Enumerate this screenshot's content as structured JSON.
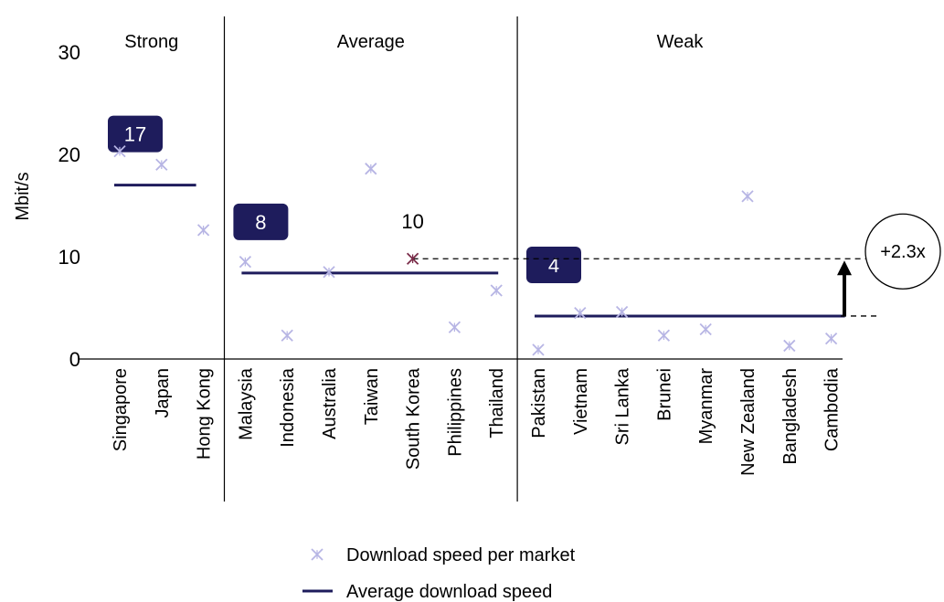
{
  "chart_data": {
    "type": "scatter",
    "ylabel": "Mbit/s",
    "ylim": [
      0,
      30
    ],
    "yticks": [
      0,
      10,
      20,
      30
    ],
    "grid": false,
    "legend_position": "bottom-center",
    "groups": [
      {
        "name": "Strong",
        "average": 17,
        "average_label": "17",
        "markets": [
          {
            "name": "Singapore",
            "value": 20.3
          },
          {
            "name": "Japan",
            "value": 19.0
          },
          {
            "name": "Hong Kong",
            "value": 12.6
          }
        ]
      },
      {
        "name": "Average",
        "average": 8.4,
        "average_label": "8",
        "markets": [
          {
            "name": "Malaysia",
            "value": 9.5
          },
          {
            "name": "Indonesia",
            "value": 2.3
          },
          {
            "name": "Australia",
            "value": 8.5
          },
          {
            "name": "Taiwan",
            "value": 18.6
          },
          {
            "name": "South Korea",
            "value": 9.8
          },
          {
            "name": "Philippines",
            "value": 3.1
          },
          {
            "name": "Thailand",
            "value": 6.7
          }
        ]
      },
      {
        "name": "Weak",
        "average": 4.2,
        "average_label": "4",
        "markets": [
          {
            "name": "Pakistan",
            "value": 0.9
          },
          {
            "name": "Vietnam",
            "value": 4.5
          },
          {
            "name": "Sri Lanka",
            "value": 4.6
          },
          {
            "name": "Brunei",
            "value": 2.3
          },
          {
            "name": "Myanmar",
            "value": 2.9
          },
          {
            "name": "New Zealand",
            "value": 15.9
          },
          {
            "name": "Bangladesh",
            "value": 1.3
          },
          {
            "name": "Cambodia",
            "value": 2.0
          }
        ]
      }
    ],
    "highlight": {
      "market": "South Korea",
      "label": "10",
      "color": "#7b2d4a"
    },
    "comparison": {
      "label": "+2.3x",
      "from_value": 4.2,
      "to_value": 9.8
    },
    "legend": [
      {
        "label": "Download speed per market",
        "kind": "marker"
      },
      {
        "label": "Average download speed",
        "kind": "line"
      }
    ],
    "colors": {
      "marker": "#b7b5e4",
      "average_line": "#1e1c5c",
      "badge": "#1e1c5c",
      "badge_text": "#ffffff"
    }
  }
}
